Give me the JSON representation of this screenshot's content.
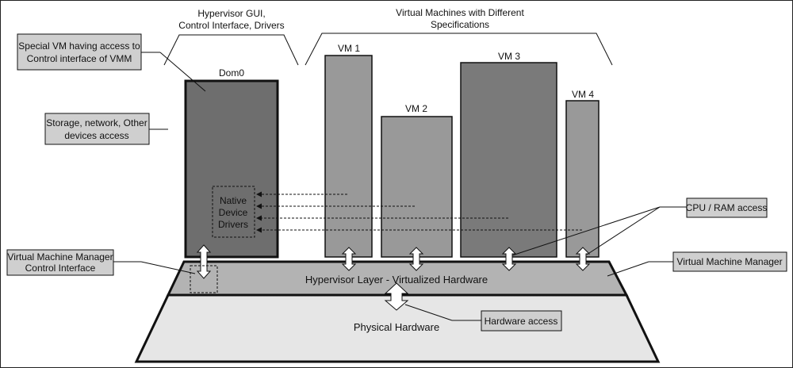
{
  "top_labels": {
    "hypervisor_gui": [
      "Hypervisor GUI,",
      "Control Interface, Drivers"
    ],
    "virtual_machines": [
      "Virtual Machines with Different",
      "Specifications"
    ]
  },
  "callouts": {
    "special_vm": [
      "Special VM having access to",
      "Control interface of VMM"
    ],
    "storage": [
      "Storage, network, Other",
      "devices access"
    ],
    "vmm_control": [
      "Virtual Machine Manager",
      "Control Interface"
    ],
    "cpu_ram": "CPU / RAM access",
    "vmm": "Virtual Machine Manager",
    "hardware_access": "Hardware access"
  },
  "dom0": {
    "label": "Dom0",
    "drivers": [
      "Native",
      "Device",
      "Drivers"
    ]
  },
  "vms": [
    {
      "label": "VM 1"
    },
    {
      "label": "VM 2"
    },
    {
      "label": "VM 3"
    },
    {
      "label": "VM 4"
    }
  ],
  "layers": {
    "hypervisor": "Hypervisor Layer - Virtualized Hardware",
    "physical": "Physical Hardware"
  },
  "colors": {
    "dom0_fill": "#6e6e6e",
    "vm_fill": "#999999",
    "vm3_fill": "#7a7a7a",
    "hypervisor_fill": "#b3b3b3",
    "physical_fill": "#e6e6e6",
    "callout_fill": "#cfcfcf"
  }
}
